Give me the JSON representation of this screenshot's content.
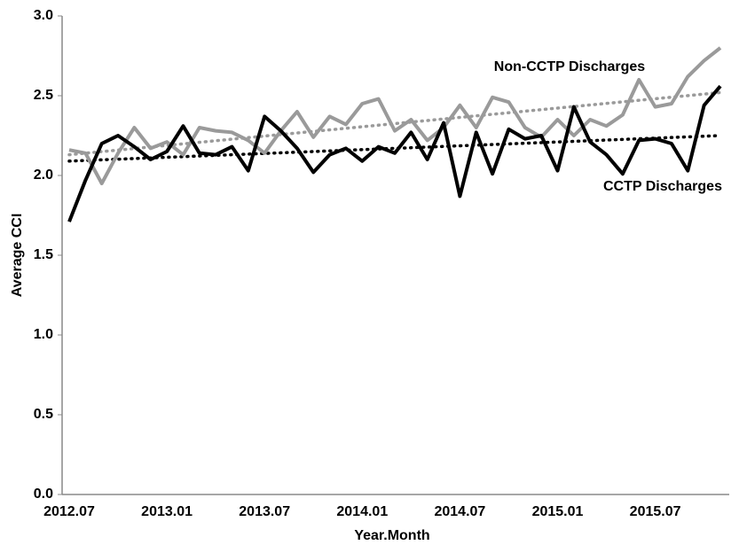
{
  "chart_data": {
    "type": "line",
    "x_label": "Year.Month",
    "y_label": "Average CCI",
    "categories": [
      "2012.07",
      null,
      null,
      null,
      null,
      null,
      "2013.01",
      null,
      null,
      null,
      null,
      null,
      "2013.07",
      null,
      null,
      null,
      null,
      null,
      "2014.01",
      null,
      null,
      null,
      null,
      null,
      "2014.07",
      null,
      null,
      null,
      null,
      null,
      "2015.01",
      null,
      null,
      null,
      null,
      null,
      "2015.07",
      null,
      null,
      null,
      null
    ],
    "series": [
      {
        "name": "Non-CCTP Discharges",
        "color": "#9a9a9a",
        "trend": [
          2.13,
          2.52
        ],
        "values": [
          2.16,
          2.14,
          1.95,
          2.14,
          2.3,
          2.17,
          2.21,
          2.13,
          2.3,
          2.28,
          2.27,
          2.22,
          2.14,
          2.28,
          2.4,
          2.24,
          2.37,
          2.32,
          2.45,
          2.48,
          2.28,
          2.35,
          2.22,
          2.3,
          2.44,
          2.3,
          2.49,
          2.46,
          2.3,
          2.24,
          2.35,
          2.25,
          2.35,
          2.31,
          2.38,
          2.6,
          2.43,
          2.45,
          2.62,
          2.72,
          2.8
        ]
      },
      {
        "name": "CCTP Discharges",
        "color": "#000000",
        "trend": [
          2.09,
          2.25
        ],
        "values": [
          1.71,
          1.97,
          2.2,
          2.25,
          2.18,
          2.1,
          2.15,
          2.31,
          2.14,
          2.13,
          2.18,
          2.03,
          2.37,
          2.28,
          2.17,
          2.02,
          2.13,
          2.17,
          2.09,
          2.18,
          2.14,
          2.27,
          2.1,
          2.33,
          1.87,
          2.27,
          2.01,
          2.29,
          2.23,
          2.25,
          2.03,
          2.43,
          2.21,
          2.13,
          2.01,
          2.22,
          2.23,
          2.2,
          2.03,
          2.44,
          2.56
        ]
      }
    ],
    "ylim": [
      0,
      3
    ],
    "yticks": [
      {
        "value": 0,
        "label": "0.0"
      },
      0.5,
      {
        "value": 1,
        "label": "1.0"
      },
      1.5,
      {
        "value": 2,
        "label": "2.0"
      },
      2.5,
      {
        "value": 3,
        "label": "3.0"
      }
    ],
    "grid": false
  }
}
